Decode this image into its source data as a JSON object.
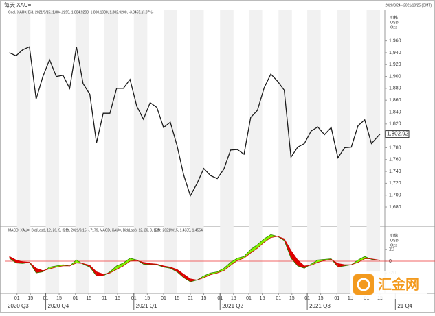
{
  "header": {
    "title": "每天 XAU=",
    "range": "2020/8/24 - 2021/10/25 (GMT)"
  },
  "watermark": "汇金网",
  "xlim": [
    "2020-08-20",
    "2021-09-20"
  ],
  "xticks": [
    {
      "value": "2020-09-01",
      "label": "01"
    },
    {
      "value": "2020-09-15",
      "label": "15"
    },
    {
      "value": "2020-10-01",
      "label": "01"
    },
    {
      "value": "2020-10-15",
      "label": "15"
    },
    {
      "value": "2020-11-01",
      "label": "01"
    },
    {
      "value": "2020-11-15",
      "label": "15"
    },
    {
      "value": "2020-12-01",
      "label": "01"
    },
    {
      "value": "2020-12-15",
      "label": "15"
    },
    {
      "value": "2021-01-01",
      "label": "01"
    },
    {
      "value": "2021-01-15",
      "label": "15"
    },
    {
      "value": "2021-02-01",
      "label": "01"
    },
    {
      "value": "2021-02-15",
      "label": "15"
    },
    {
      "value": "2021-03-01",
      "label": "01"
    },
    {
      "value": "2021-03-15",
      "label": "15"
    },
    {
      "value": "2021-04-01",
      "label": "01"
    },
    {
      "value": "2021-04-15",
      "label": "15"
    },
    {
      "value": "2021-05-01",
      "label": "01"
    },
    {
      "value": "2021-05-15",
      "label": "15"
    },
    {
      "value": "2021-06-01",
      "label": "01"
    },
    {
      "value": "2021-06-15",
      "label": "15"
    },
    {
      "value": "2021-07-01",
      "label": "01"
    },
    {
      "value": "2021-07-15",
      "label": "15"
    },
    {
      "value": "2021-08-01",
      "label": "01"
    },
    {
      "value": "2021-08-15",
      "label": "15"
    },
    {
      "value": "2021-09-01",
      "label": "01"
    },
    {
      "value": "2021-09-15",
      "label": "15"
    }
  ],
  "quarter_ticks": [
    {
      "value": "2020-07-01",
      "label": "2020 Q3"
    },
    {
      "value": "2020-10-01",
      "label": "2020 Q4"
    },
    {
      "value": "2021-01-01",
      "label": "2021 Q1"
    },
    {
      "value": "2021-04-01",
      "label": "2021 Q2"
    },
    {
      "value": "2021-07-01",
      "label": "2021 Q3"
    },
    {
      "value": "2021-10-01",
      "label": "21 Q4"
    }
  ],
  "chart_data": [
    {
      "type": "line",
      "legend": "Cndl, XAU=, Bid, 2021/9/15, 1,804.2255, 1,804.9200, 1,800.1900, 1,802.9200, -3.9455, (-.07%)",
      "axis_units": [
        "价格",
        "USD",
        "Ozs"
      ],
      "x": [
        "2020-08-24",
        "2020-08-31",
        "2020-09-07",
        "2020-09-14",
        "2020-09-21",
        "2020-09-28",
        "2020-10-05",
        "2020-10-12",
        "2020-10-19",
        "2020-10-26",
        "2020-11-02",
        "2020-11-09",
        "2020-11-16",
        "2020-11-23",
        "2020-11-30",
        "2020-12-07",
        "2020-12-14",
        "2020-12-21",
        "2020-12-28",
        "2021-01-04",
        "2021-01-11",
        "2021-01-18",
        "2021-01-25",
        "2021-02-01",
        "2021-02-08",
        "2021-02-15",
        "2021-02-22",
        "2021-03-01",
        "2021-03-08",
        "2021-03-15",
        "2021-03-22",
        "2021-03-29",
        "2021-04-05",
        "2021-04-12",
        "2021-04-19",
        "2021-04-26",
        "2021-05-03",
        "2021-05-10",
        "2021-05-17",
        "2021-05-24",
        "2021-05-31",
        "2021-06-07",
        "2021-06-14",
        "2021-06-21",
        "2021-06-28",
        "2021-07-05",
        "2021-07-12",
        "2021-07-19",
        "2021-07-26",
        "2021-08-02",
        "2021-08-09",
        "2021-08-16",
        "2021-08-23",
        "2021-08-30",
        "2021-09-06",
        "2021-09-15"
      ],
      "series": [
        {
          "name": "XAU=",
          "color": "#1a1a1a",
          "values": [
            1940,
            1935,
            1945,
            1950,
            1862,
            1900,
            1928,
            1900,
            1902,
            1880,
            1950,
            1888,
            1870,
            1788,
            1838,
            1838,
            1880,
            1880,
            1895,
            1850,
            1828,
            1856,
            1848,
            1814,
            1823,
            1784,
            1734,
            1699,
            1720,
            1745,
            1733,
            1728,
            1744,
            1776,
            1777,
            1769,
            1831,
            1843,
            1881,
            1904,
            1892,
            1877,
            1764,
            1781,
            1787,
            1808,
            1815,
            1802,
            1814,
            1763,
            1780,
            1781,
            1817,
            1827,
            1787,
            1802.92
          ],
          "value_labels": [
            null,
            null,
            null,
            null,
            null,
            null,
            null,
            null,
            null,
            null,
            null,
            null,
            null,
            null,
            null,
            null,
            null,
            null,
            null,
            null,
            null,
            null,
            null,
            null,
            null,
            null,
            null,
            null,
            null,
            null,
            null,
            null,
            null,
            null,
            null,
            null,
            null,
            null,
            null,
            null,
            null,
            null,
            null,
            null,
            null,
            null,
            null,
            null,
            null,
            null,
            null,
            null,
            null,
            null,
            null,
            "1,802.92"
          ]
        }
      ],
      "ylim": [
        1650,
        2000
      ],
      "yticks": [
        {
          "value": 1680,
          "label": "1,680"
        },
        {
          "value": 1700,
          "label": "1,700"
        },
        {
          "value": 1720,
          "label": "1,720"
        },
        {
          "value": 1740,
          "label": "1,740"
        },
        {
          "value": 1760,
          "label": "1,760"
        },
        {
          "value": 1780,
          "label": "1,780"
        },
        {
          "value": 1800,
          "label": "1,800"
        },
        {
          "value": 1820,
          "label": "1,820"
        },
        {
          "value": 1840,
          "label": "1,840"
        },
        {
          "value": 1860,
          "label": "1,860"
        },
        {
          "value": 1880,
          "label": "1,880"
        },
        {
          "value": 1900,
          "label": "1,900"
        },
        {
          "value": 1920,
          "label": "1,920"
        },
        {
          "value": 1940,
          "label": "1,940"
        },
        {
          "value": 1960,
          "label": "1,960"
        }
      ]
    },
    {
      "type": "macd",
      "legend": "MACD, XAU=, Bid(Last), 12, 26, 9, 指数, 2021/9/15, -.7179, MACD, XAU=, Bid(Last), 12, 26, 9, 指数, 2021/9/15, 1.4335, 1.4554",
      "axis_units": [
        "价值",
        "USD",
        "Ozs"
      ],
      "series": [
        {
          "name": "MACD",
          "color": "#2f7d00",
          "values": [
            5,
            -3,
            -4,
            -2,
            -20,
            -18,
            -10,
            -8,
            -6,
            -8,
            2,
            -5,
            -10,
            -25,
            -25,
            -18,
            -8,
            -3,
            5,
            2,
            -5,
            -6,
            -6,
            -10,
            -12,
            -18,
            -28,
            -35,
            -32,
            -25,
            -20,
            -18,
            -12,
            -2,
            5,
            8,
            20,
            28,
            38,
            45,
            42,
            35,
            5,
            -8,
            -12,
            -5,
            2,
            3,
            4,
            -10,
            -8,
            -6,
            2,
            8,
            3,
            1.4335
          ]
        },
        {
          "name": "Signal",
          "color": "#cc0000",
          "values": [
            8,
            2,
            -1,
            -2,
            -12,
            -16,
            -13,
            -10,
            -8,
            -8,
            -3,
            -4,
            -7,
            -18,
            -22,
            -20,
            -14,
            -8,
            0,
            1,
            -2,
            -4,
            -5,
            -8,
            -10,
            -14,
            -22,
            -30,
            -32,
            -28,
            -23,
            -20,
            -16,
            -7,
            1,
            5,
            14,
            22,
            32,
            40,
            42,
            38,
            18,
            2,
            -8,
            -7,
            -2,
            1,
            3,
            -4,
            -6,
            -6,
            -2,
            4,
            4,
            1.4554
          ]
        }
      ],
      "fill_colors": [
        "#80f000",
        "#e00000"
      ],
      "ylim": [
        -50,
        50
      ],
      "yticks": [
        20,
        0,
        -20
      ]
    }
  ]
}
